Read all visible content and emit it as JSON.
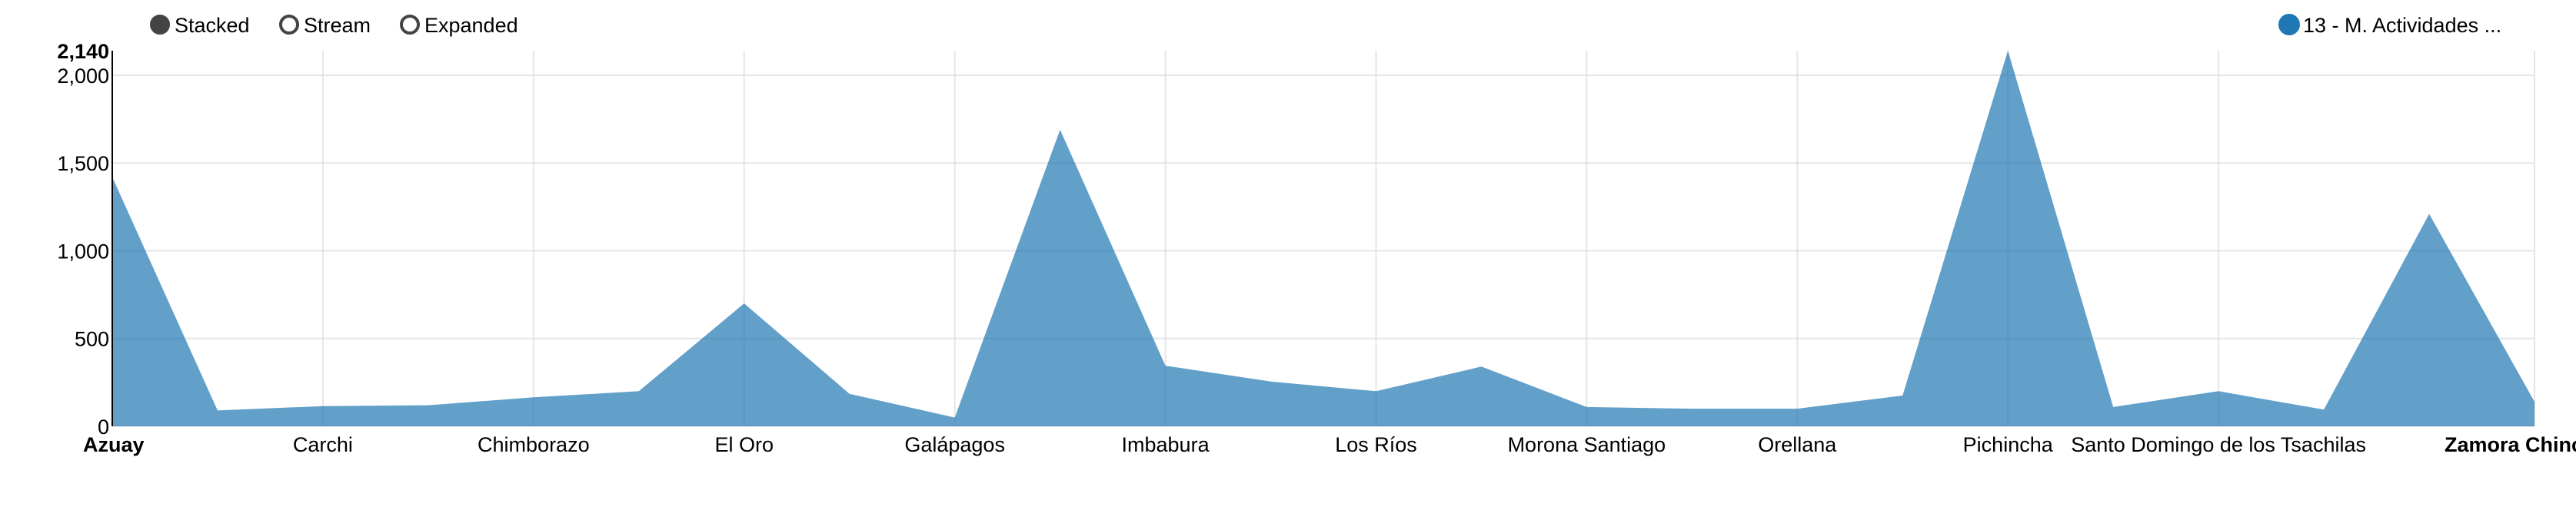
{
  "controls": {
    "options": [
      {
        "label": "Stacked",
        "selected": true
      },
      {
        "label": "Stream",
        "selected": false
      },
      {
        "label": "Expanded",
        "selected": false
      }
    ]
  },
  "legend": {
    "entries": [
      {
        "label": "13 - M. Actividades ...",
        "color": "#1f77b4"
      }
    ]
  },
  "chart_data": {
    "type": "area",
    "stacked": true,
    "title": "",
    "xlabel": "",
    "ylabel": "",
    "ylim": [
      0,
      2140
    ],
    "y_ticks": [
      0,
      500,
      1000,
      1500,
      2000
    ],
    "y_ticks_labels": [
      "0",
      "500",
      "1,000",
      "1,500",
      "2,000"
    ],
    "y_max_label": "2,140",
    "grid": true,
    "legend_position": "top-right",
    "x_tick_labels": [
      {
        "index": 0,
        "label": "Azuay",
        "bold": true
      },
      {
        "index": 2,
        "label": "Carchi",
        "bold": false
      },
      {
        "index": 4,
        "label": "Chimborazo",
        "bold": false
      },
      {
        "index": 6,
        "label": "El Oro",
        "bold": false
      },
      {
        "index": 8,
        "label": "Galápagos",
        "bold": false
      },
      {
        "index": 10,
        "label": "Imbabura",
        "bold": false
      },
      {
        "index": 12,
        "label": "Los Ríos",
        "bold": false
      },
      {
        "index": 14,
        "label": "Morona Santiago",
        "bold": false
      },
      {
        "index": 16,
        "label": "Orellana",
        "bold": false
      },
      {
        "index": 18,
        "label": "Pichincha",
        "bold": false
      },
      {
        "index": 20,
        "label": "Santo Domingo de los Tsachilas",
        "bold": false
      },
      {
        "index": 23,
        "label": "Zamora Chinchipe",
        "bold": true
      }
    ],
    "series": [
      {
        "name": "13 - M. Actividades ...",
        "color": "#1f77b4",
        "values": [
          1420,
          90,
          115,
          120,
          165,
          200,
          700,
          185,
          50,
          1690,
          345,
          255,
          200,
          340,
          110,
          100,
          100,
          175,
          2140,
          110,
          200,
          95,
          1210,
          140
        ]
      }
    ]
  }
}
